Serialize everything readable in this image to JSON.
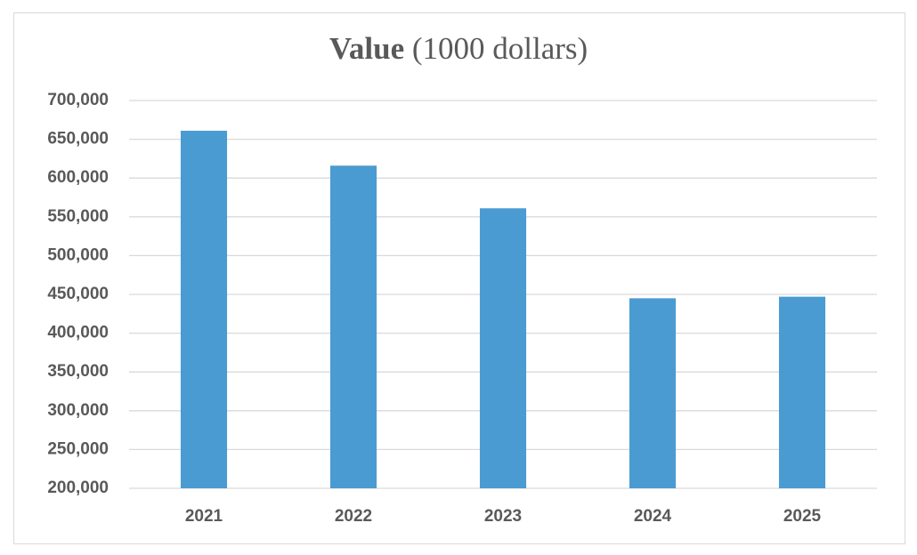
{
  "chart_data": {
    "type": "bar",
    "title": "Value",
    "title_unit": "(1000 dollars)",
    "categories": [
      "2021",
      "2022",
      "2023",
      "2024",
      "2025"
    ],
    "values": [
      661000,
      616000,
      561000,
      445000,
      447000
    ],
    "color": "#4a9bd1",
    "ylim": [
      200000,
      700000
    ],
    "yticks": [
      {
        "value": 200000,
        "label": "200,000"
      },
      {
        "value": 250000,
        "label": "250,000"
      },
      {
        "value": 300000,
        "label": "300,000"
      },
      {
        "value": 350000,
        "label": "350,000"
      },
      {
        "value": 400000,
        "label": "400,000"
      },
      {
        "value": 450000,
        "label": "450,000"
      },
      {
        "value": 500000,
        "label": "500,000"
      },
      {
        "value": 550000,
        "label": "550,000"
      },
      {
        "value": 600000,
        "label": "600,000"
      },
      {
        "value": 650000,
        "label": "650,000"
      },
      {
        "value": 700000,
        "label": "700,000"
      }
    ],
    "grid": true
  }
}
